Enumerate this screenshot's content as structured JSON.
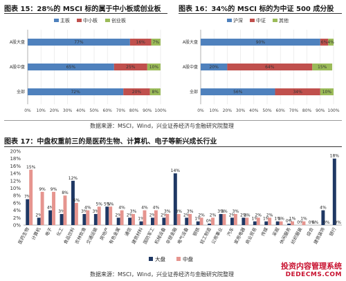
{
  "fig15_title": "图表 15：28%的 MSCI 标的属于中小板或创业板",
  "fig16_title": "图表 16：34%的 MSCI 标的为中证 500 成分股",
  "fig17_title": "图表 17：中盘权重前三的是医药生物、计算机、电子等新兴成长行业",
  "source_text": "数据来源：MSCI，Wind，兴业证券经济与金融研究院整理",
  "watermark": {
    "line1": "投资内容管理系统",
    "line2": "DEDECMS.COM"
  },
  "colors": {
    "blue": "#4f81bd",
    "red": "#c0504d",
    "green": "#9bbb59",
    "navy": "#1f3864",
    "salmon": "#e6958f"
  },
  "chart_data": [
    {
      "type": "bar",
      "stacked": "horizontal-100%",
      "title": "图表 15：28%的 MSCI 标的属于中小板或创业板",
      "categories": [
        "A股大盘",
        "A股中盘",
        "全部"
      ],
      "series": [
        {
          "name": "主板",
          "values": [
            77,
            65,
            72
          ]
        },
        {
          "name": "中小板",
          "values": [
            16,
            25,
            20
          ]
        },
        {
          "name": "创业板",
          "values": [
            7,
            10,
            8
          ]
        }
      ],
      "xlim": [
        0,
        100
      ],
      "xticks": [
        "0%",
        "10%",
        "20%",
        "30%",
        "40%",
        "50%",
        "60%",
        "70%",
        "80%",
        "90%",
        "100%"
      ],
      "legend": "top"
    },
    {
      "type": "bar",
      "stacked": "horizontal-100%",
      "title": "图表 16：34%的 MSCI 标的为中证 500 成分股",
      "categories": [
        "A股大盘",
        "A股中盘",
        "全部"
      ],
      "series": [
        {
          "name": "沪深",
          "values": [
            90,
            20,
            56
          ]
        },
        {
          "name": "中证",
          "values": [
            6,
            64,
            34
          ]
        },
        {
          "name": "其他",
          "values": [
            4,
            15,
            10
          ]
        }
      ],
      "xlim": [
        0,
        100
      ],
      "xticks": [
        "0%",
        "10%",
        "20%",
        "30%",
        "40%",
        "50%",
        "60%",
        "70%",
        "80%",
        "90%",
        "100%"
      ],
      "legend": "top"
    },
    {
      "type": "bar",
      "title": "图表 17：中盘权重前三的是医药生物、计算机、电子等新兴成长行业",
      "categories": [
        "医药生物",
        "计算机",
        "电子",
        "化工",
        "食品饮料",
        "农林牧渔",
        "交通运输",
        "房地产",
        "有色金属",
        "通信",
        "建筑材料",
        "国防军工",
        "机械设备",
        "非银金融",
        "电气设备",
        "钢铁",
        "轻工制造",
        "公用事业",
        "汽车",
        "家用电器",
        "商业贸易",
        "传媒",
        "采掘",
        "休闲服务",
        "纺织服装",
        "综合",
        "建筑装饰",
        "银行"
      ],
      "series": [
        {
          "name": "大盘",
          "values": [
            7,
            2,
            4,
            3,
            12,
            3,
            3,
            5,
            2,
            2,
            1,
            2,
            2,
            14,
            2,
            1,
            0.4,
            3,
            2,
            2,
            1,
            1,
            1,
            0.4,
            0,
            0,
            4,
            18
          ]
        },
        {
          "name": "中盘",
          "values": [
            15,
            9,
            9,
            8,
            6,
            4,
            5,
            5,
            4,
            3,
            4,
            4,
            3,
            3,
            3,
            2,
            2,
            3,
            3,
            2,
            2,
            2,
            1,
            1,
            1,
            0,
            0,
            0
          ]
        }
      ],
      "data_labels": {
        "大盘": [
          "7%",
          "2%",
          "4%",
          "3%",
          "12%",
          "3%",
          "3%",
          "5%",
          "2%",
          "2%",
          "1%",
          "2%",
          "2%",
          "14%",
          "2%",
          "1%",
          "0%",
          "3%",
          "2%",
          "2%",
          "1%",
          "1%",
          "1%",
          "0%",
          "0%",
          "0%",
          "4%",
          "18%"
        ],
        "中盘": [
          "15%",
          "9%",
          "9%",
          "8%",
          "6%",
          "4%",
          "5%",
          "5%",
          "4%",
          "3%",
          "4%",
          "4%",
          "3%",
          "3%",
          "3%",
          "2%",
          "2%",
          "3%",
          "3%",
          "2%",
          "2%",
          "2%",
          "1%",
          "1%",
          "1%",
          "0%",
          "0%",
          "0%"
        ]
      },
      "ylim": [
        0,
        20
      ],
      "yticks": [
        "0%",
        "2%",
        "4%",
        "6%",
        "8%",
        "10%",
        "12%",
        "14%",
        "16%",
        "18%",
        "20%"
      ],
      "legend": "bottom"
    }
  ]
}
